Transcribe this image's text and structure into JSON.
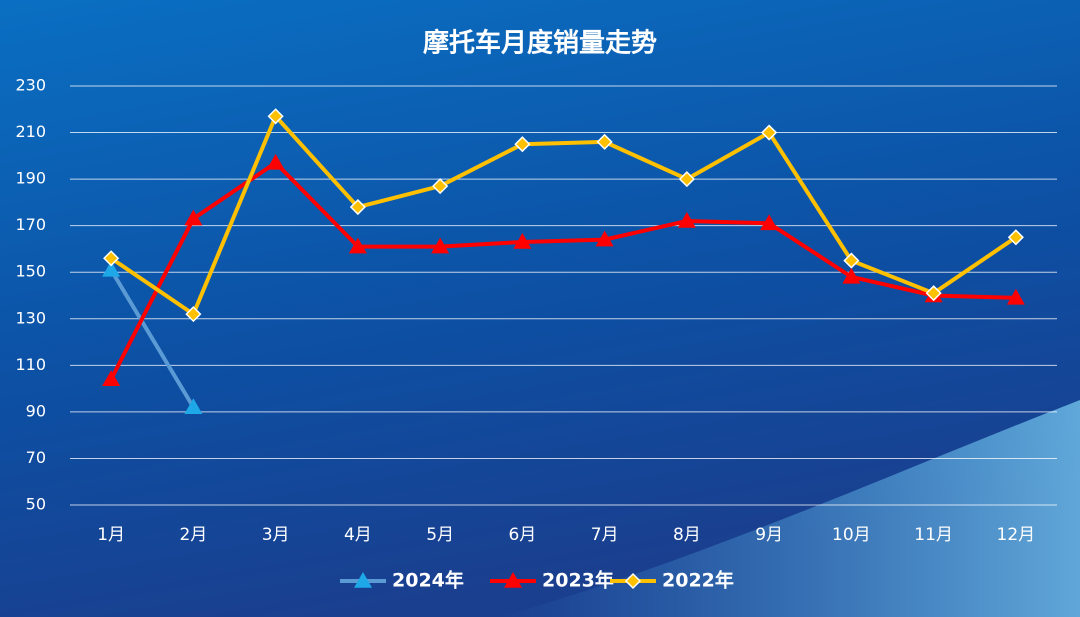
{
  "chart_data": {
    "type": "line",
    "title": "摩托车月度销量走势",
    "categories": [
      "1月",
      "2月",
      "3月",
      "4月",
      "5月",
      "6月",
      "7月",
      "8月",
      "9月",
      "10月",
      "11月",
      "12月"
    ],
    "series": [
      {
        "name": "2024年",
        "color": "#5b9bd5",
        "marker": "triangle",
        "marker_color": "#1fa8e8",
        "values": [
          151,
          92,
          null,
          null,
          null,
          null,
          null,
          null,
          null,
          null,
          null,
          null
        ]
      },
      {
        "name": "2023年",
        "color": "#ff0000",
        "marker": "triangle",
        "marker_color": "#ff0000",
        "values": [
          104,
          173,
          197,
          161,
          161,
          163,
          164,
          172,
          171,
          148,
          140,
          139
        ]
      },
      {
        "name": "2022年",
        "color": "#ffc000",
        "marker": "diamond",
        "marker_color": "#ffc000",
        "values": [
          156,
          132,
          217,
          178,
          187,
          205,
          206,
          190,
          210,
          155,
          141,
          165
        ]
      }
    ],
    "ylim": [
      50,
      230
    ],
    "yticks": [
      50,
      70,
      90,
      110,
      130,
      150,
      170,
      190,
      210,
      230
    ],
    "grid": true,
    "legend": "bottom"
  }
}
